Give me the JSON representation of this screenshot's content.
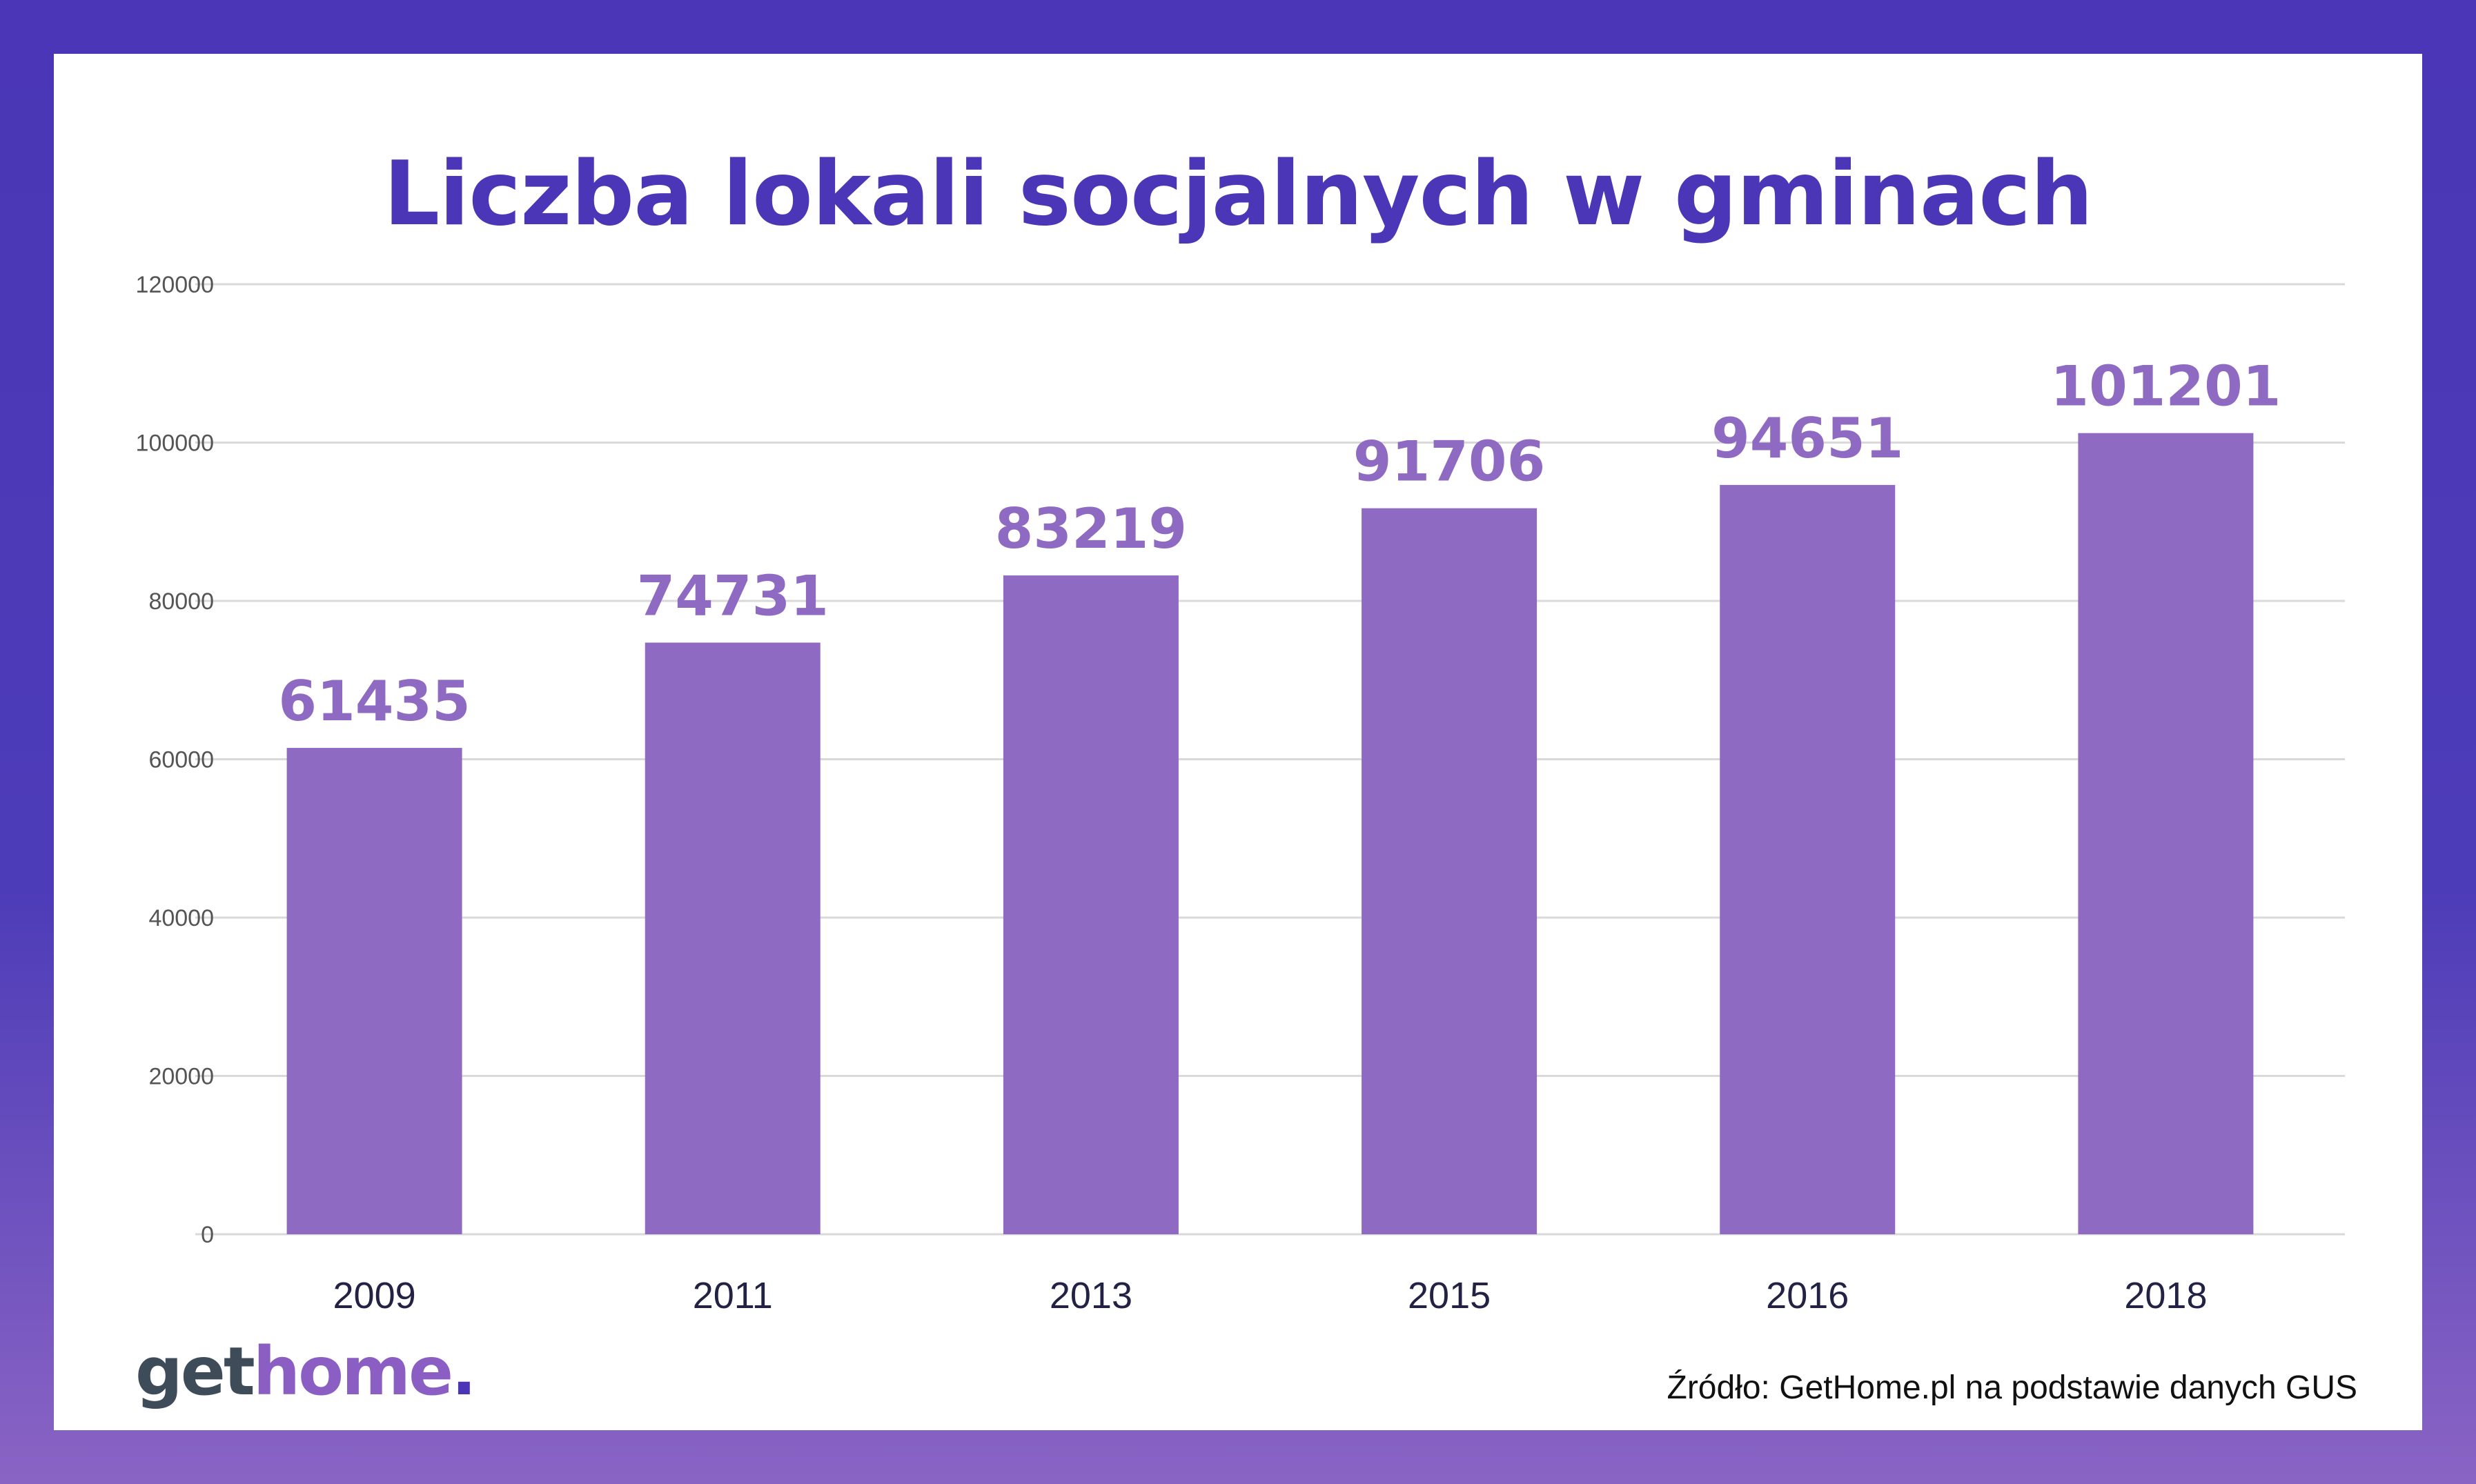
{
  "chart_data": {
    "type": "bar",
    "title": "Liczba lokali socjalnych w gminach",
    "categories": [
      "2009",
      "2011",
      "2013",
      "2015",
      "2016",
      "2018"
    ],
    "values": [
      61435,
      74731,
      83219,
      91706,
      94651,
      101201
    ],
    "data_labels": [
      "61435",
      "74731",
      "83219",
      "91706",
      "94651",
      "101201"
    ],
    "ylim": [
      0,
      120000
    ],
    "yticks": [
      "0",
      "20000",
      "40000",
      "60000",
      "80000",
      "100000",
      "120000"
    ],
    "grid": true,
    "legend": "none",
    "xlabel": "",
    "ylabel": ""
  },
  "colors": {
    "bar": "#8f6ac2",
    "grid": "#d9d9d9",
    "title": "#4a36b6"
  },
  "logo": {
    "part1": "get",
    "part2": "home",
    "part3": "."
  },
  "source": "Źródło: GetHome.pl na podstawie danych GUS"
}
